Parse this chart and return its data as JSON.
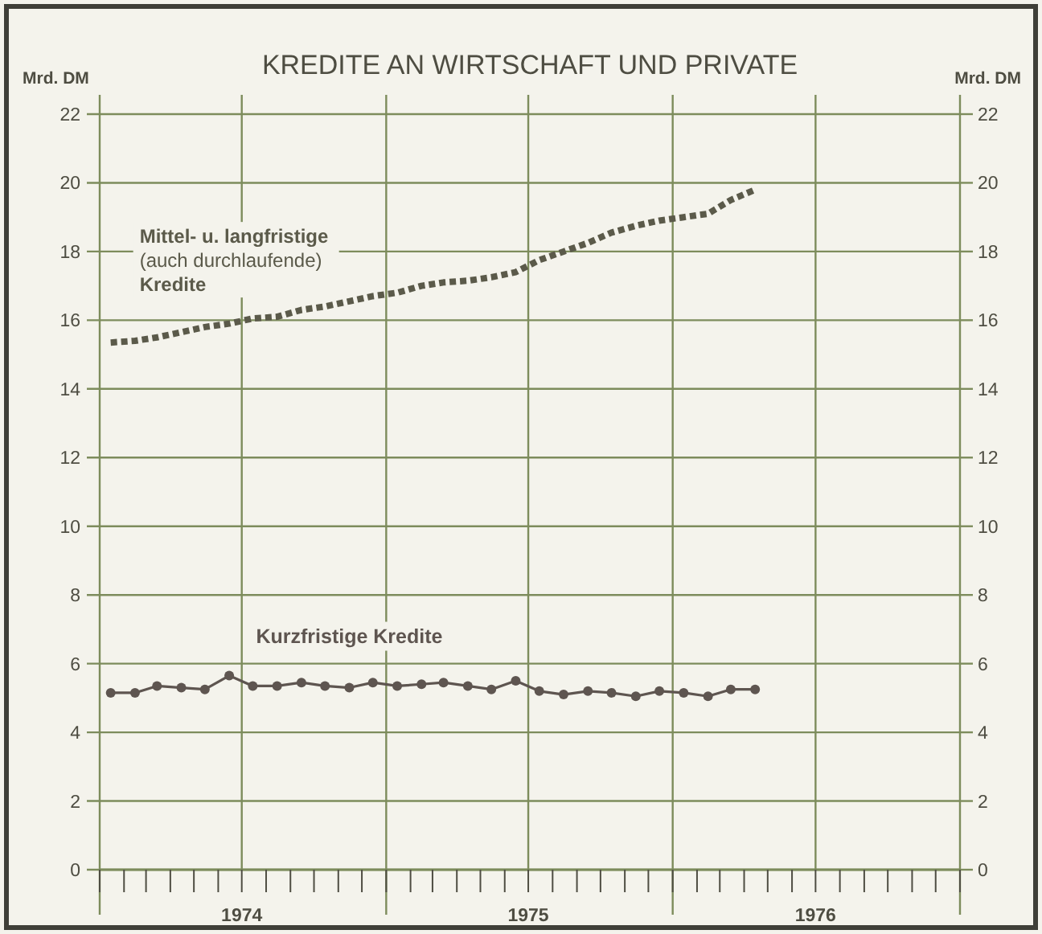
{
  "chart_data": {
    "type": "line",
    "title": "KREDITE AN WIRTSCHAFT UND PRIVATE",
    "ylabel": "Mrd. DM",
    "y2label": "Mrd. DM",
    "x": [
      "1974-01-15",
      "1974-02-15",
      "1974-03-15",
      "1974-04-15",
      "1974-05-15",
      "1974-06-15",
      "1974-07-15",
      "1974-08-15",
      "1974-09-15",
      "1974-10-15",
      "1974-11-15",
      "1974-12-15",
      "1975-01-15",
      "1975-02-15",
      "1975-03-15",
      "1975-04-15",
      "1975-05-15",
      "1975-06-15",
      "1975-07-15",
      "1975-08-15",
      "1975-09-15",
      "1975-10-15",
      "1975-11-15",
      "1975-12-15",
      "1976-01-15",
      "1976-02-15",
      "1976-03-15",
      "1976-04-15"
    ],
    "series": [
      {
        "name": "Mittel- u. langfristige\n(auch durchlaufende)\nKredite",
        "color": "#5b5a4a",
        "marker": "none",
        "line_style": "dotted",
        "values": [
          15.35,
          15.4,
          15.5,
          15.65,
          15.8,
          15.9,
          16.05,
          16.1,
          16.3,
          16.4,
          16.55,
          16.7,
          16.8,
          17.0,
          17.1,
          17.15,
          17.25,
          17.4,
          17.75,
          18.0,
          18.25,
          18.55,
          18.75,
          18.9,
          19.0,
          19.1,
          19.5,
          19.8
        ]
      },
      {
        "name": "Kurzfristige Kredite",
        "color": "#5e5550",
        "marker": "circle",
        "line_style": "solid",
        "values": [
          5.15,
          5.15,
          5.35,
          5.3,
          5.25,
          5.65,
          5.35,
          5.35,
          5.45,
          5.35,
          5.3,
          5.45,
          5.35,
          5.4,
          5.45,
          5.35,
          5.25,
          5.5,
          5.2,
          5.1,
          5.2,
          5.15,
          5.05,
          5.2,
          5.15,
          5.05,
          5.25,
          5.25
        ]
      }
    ],
    "xlim": [
      "1974-01-01",
      "1977-01-01"
    ],
    "xticks": [
      {
        "value": "1974-01-01",
        "label": null
      },
      {
        "value": "1974-02-01",
        "label": null
      },
      {
        "value": "1974-03-01",
        "label": null
      },
      {
        "value": "1974-04-01",
        "label": null
      },
      {
        "value": "1974-05-01",
        "label": null
      },
      {
        "value": "1974-06-01",
        "label": null
      },
      {
        "value": "1974-07-01",
        "label": "1974"
      },
      {
        "value": "1974-08-01",
        "label": null
      },
      {
        "value": "1974-09-01",
        "label": null
      },
      {
        "value": "1974-10-01",
        "label": null
      },
      {
        "value": "1974-11-01",
        "label": null
      },
      {
        "value": "1974-12-01",
        "label": null
      },
      {
        "value": "1975-01-01",
        "label": null
      },
      {
        "value": "1975-02-01",
        "label": null
      },
      {
        "value": "1975-03-01",
        "label": null
      },
      {
        "value": "1975-04-01",
        "label": null
      },
      {
        "value": "1975-05-01",
        "label": null
      },
      {
        "value": "1975-06-01",
        "label": null
      },
      {
        "value": "1975-07-01",
        "label": "1975"
      },
      {
        "value": "1975-08-01",
        "label": null
      },
      {
        "value": "1975-09-01",
        "label": null
      },
      {
        "value": "1975-10-01",
        "label": null
      },
      {
        "value": "1975-11-01",
        "label": null
      },
      {
        "value": "1975-12-01",
        "label": null
      },
      {
        "value": "1976-01-01",
        "label": null
      },
      {
        "value": "1976-02-01",
        "label": null
      },
      {
        "value": "1976-03-01",
        "label": null
      },
      {
        "value": "1976-04-01",
        "label": null
      },
      {
        "value": "1976-05-01",
        "label": null
      },
      {
        "value": "1976-06-01",
        "label": null
      },
      {
        "value": "1976-07-01",
        "label": "1976"
      },
      {
        "value": "1976-08-01",
        "label": null
      },
      {
        "value": "1976-09-01",
        "label": null
      },
      {
        "value": "1976-10-01",
        "label": null
      },
      {
        "value": "1976-11-01",
        "label": null
      },
      {
        "value": "1976-12-01",
        "label": null
      },
      {
        "value": "1977-01-01",
        "label": null
      }
    ],
    "ylim": [
      0,
      22
    ],
    "yticks": [
      0,
      2,
      4,
      6,
      8,
      10,
      12,
      14,
      16,
      18,
      20,
      22
    ],
    "y2lim": [
      0,
      22
    ],
    "y2ticks": [
      0,
      2,
      4,
      6,
      8,
      10,
      12,
      14,
      16,
      18,
      20,
      22
    ],
    "grid": true
  }
}
